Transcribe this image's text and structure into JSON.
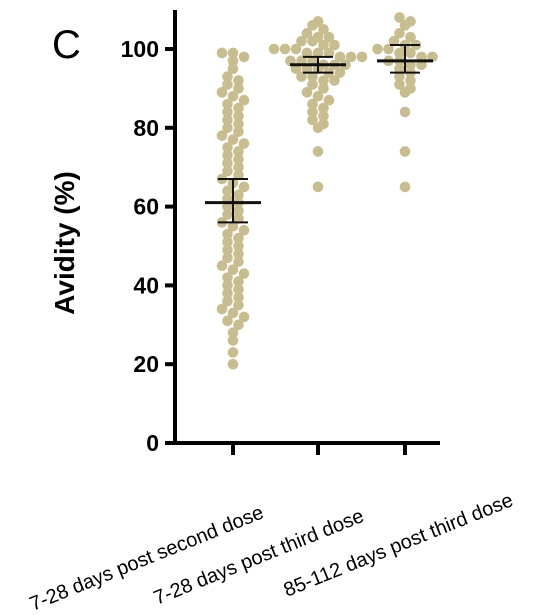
{
  "panel_label": "C",
  "chart_data": {
    "type": "scatter",
    "subtype": "dot-plot-with-mean-and-error",
    "ylabel": "Avidity (%)",
    "ylim": [
      0,
      110
    ],
    "yticks": [
      0,
      20,
      40,
      60,
      80,
      100
    ],
    "grid": false,
    "dot_color": "#c8bd8f",
    "categories": [
      "7-28 days post second dose",
      "7-28 days post third dose",
      "85-112 days post third dose"
    ],
    "groups": [
      {
        "category": "7-28 days post second dose",
        "mean": 61,
        "error_low": 56,
        "error_high": 67,
        "values": [
          99,
          99,
          98,
          97,
          95,
          93,
          92,
          91,
          90,
          89,
          88,
          87,
          86,
          85,
          84,
          83,
          82,
          81,
          80,
          79,
          78,
          77,
          76,
          75,
          74,
          73,
          72,
          71,
          70,
          69,
          68,
          67,
          66,
          65,
          64,
          63,
          62,
          61,
          60,
          59,
          58,
          57,
          56,
          55,
          54,
          53,
          52,
          51,
          50,
          49,
          48,
          47,
          46,
          45,
          44,
          43,
          42,
          41,
          40,
          39,
          38,
          37,
          36,
          35,
          34,
          33,
          32,
          31,
          30,
          28,
          26,
          23,
          20
        ]
      },
      {
        "category": "7-28 days post third dose",
        "mean": 96,
        "error_low": 94,
        "error_high": 98,
        "values": [
          107,
          106,
          105,
          104,
          103,
          103,
          102,
          102,
          101,
          101,
          100,
          100,
          100,
          99,
          99,
          99,
          98,
          98,
          98,
          97,
          97,
          97,
          96,
          96,
          96,
          95,
          95,
          95,
          94,
          94,
          93,
          93,
          92,
          92,
          91,
          90,
          89,
          88,
          87,
          86,
          85,
          84,
          83,
          82,
          81,
          80,
          74,
          65
        ]
      },
      {
        "category": "85-112 days post third dose",
        "mean": 97,
        "error_low": 94,
        "error_high": 101,
        "values": [
          108,
          107,
          106,
          104,
          103,
          102,
          101,
          101,
          100,
          100,
          99,
          99,
          98,
          98,
          97,
          97,
          96,
          96,
          95,
          94,
          93,
          92,
          91,
          90,
          89,
          84,
          74,
          65
        ]
      }
    ]
  }
}
